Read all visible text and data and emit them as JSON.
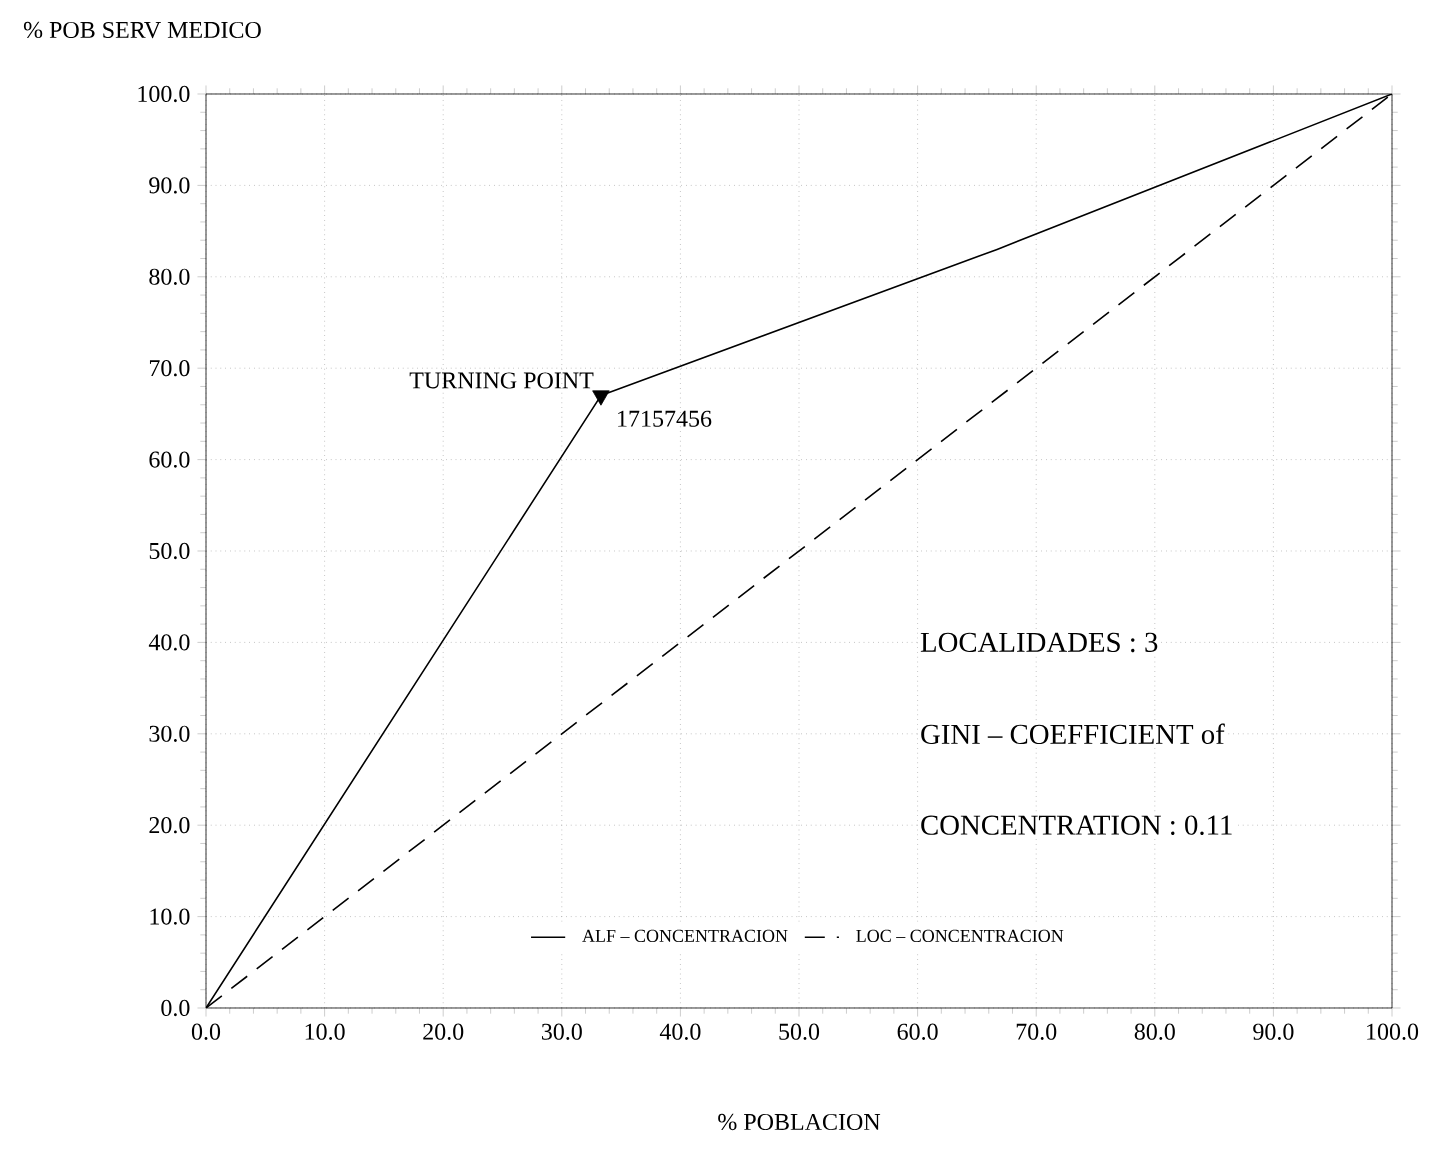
{
  "chart_data": {
    "type": "line",
    "xlabel": "% POBLACION",
    "ylabel": "% POB SERV MEDICO",
    "x": [
      0,
      33.3,
      66.7,
      100
    ],
    "series": [
      {
        "name": "ALF – CONCENTRACION",
        "color": "#000000",
        "line_style": "solid",
        "values": [
          0,
          67,
          83,
          100
        ]
      },
      {
        "name": "LOC – CONCENTRACION",
        "color": "#000000",
        "line_style": "dashed",
        "x": [
          0,
          100
        ],
        "values": [
          0,
          100
        ]
      },
      {
        "type": "scatter",
        "marker": "triangle",
        "color": "#000000",
        "x": [
          33.3
        ],
        "values": [
          67
        ]
      }
    ],
    "xlim": [
      0,
      100
    ],
    "ylim": [
      0,
      100
    ],
    "xticks": [
      {
        "value": 0,
        "label": "0.0"
      },
      {
        "value": 10,
        "label": "10.0"
      },
      {
        "value": 20,
        "label": "20.0"
      },
      {
        "value": 30,
        "label": "30.0"
      },
      {
        "value": 40,
        "label": "40.0"
      },
      {
        "value": 50,
        "label": "50.0"
      },
      {
        "value": 60,
        "label": "60.0"
      },
      {
        "value": 70,
        "label": "70.0"
      },
      {
        "value": 80,
        "label": "80.0"
      },
      {
        "value": 90,
        "label": "90.0"
      },
      {
        "value": 100,
        "label": "100.0"
      }
    ],
    "yticks": [
      {
        "value": 0,
        "label": "0.0"
      },
      {
        "value": 10,
        "label": "10.0"
      },
      {
        "value": 20,
        "label": "20.0"
      },
      {
        "value": 30,
        "label": "30.0"
      },
      {
        "value": 40,
        "label": "40.0"
      },
      {
        "value": 50,
        "label": "50.0"
      },
      {
        "value": 60,
        "label": "60.0"
      },
      {
        "value": 70,
        "label": "70.0"
      },
      {
        "value": 80,
        "label": "80.0"
      },
      {
        "value": 90,
        "label": "90.0"
      },
      {
        "value": 100,
        "label": "100.0"
      }
    ],
    "grid": true,
    "legend": "bottom",
    "annotations": [
      {
        "text": "TURNING POINT",
        "x": 33.3,
        "y": 67
      },
      {
        "text": "17157456",
        "x": 33.3,
        "y": 67
      },
      "LOCALIDADES :        3",
      "GINI – COEFFICIENT of",
      "CONCENTRATION : 0.11"
    ]
  }
}
